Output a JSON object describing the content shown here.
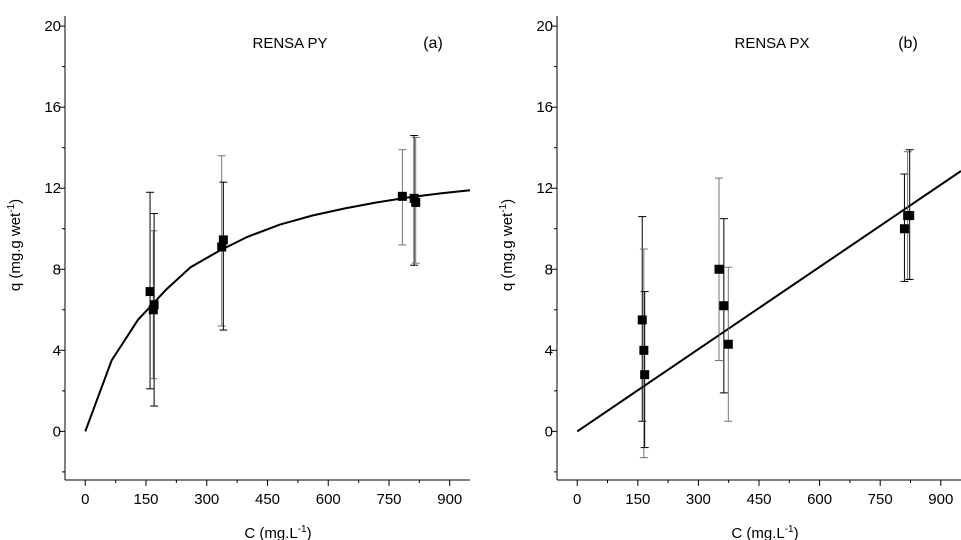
{
  "chart_data": [
    {
      "type": "scatter",
      "title": "RENSA PY",
      "panel_tag": "(a)",
      "xlabel": "C (mg.L",
      "xlabel_sup": "-1",
      "xlabel_end": ")",
      "ylabel": "q (mg.g wet",
      "ylabel_sup": "-1",
      "ylabel_end": ")",
      "xlim": [
        -50,
        950
      ],
      "ylim": [
        -2.4,
        20.5
      ],
      "xticks": [
        0,
        150,
        300,
        450,
        600,
        750,
        900
      ],
      "yticks": [
        0,
        4,
        8,
        12,
        16,
        20
      ],
      "points": [
        {
          "x": 160,
          "y": 6.9,
          "err_hi": 11.8,
          "err_lo": 2.1
        },
        {
          "x": 168,
          "y": 6.0,
          "err_hi": 9.9,
          "err_lo": 2.6
        },
        {
          "x": 170,
          "y": 6.25,
          "err_hi": 10.75,
          "err_lo": 1.25
        },
        {
          "x": 337,
          "y": 9.1,
          "err_hi": 13.6,
          "err_lo": 5.2
        },
        {
          "x": 341,
          "y": 9.45,
          "err_hi": 12.3,
          "err_lo": 5.0
        },
        {
          "x": 783,
          "y": 11.6,
          "err_hi": 13.9,
          "err_lo": 9.2
        },
        {
          "x": 812,
          "y": 11.5,
          "err_hi": 14.6,
          "err_lo": 8.2
        },
        {
          "x": 816,
          "y": 11.3,
          "err_hi": 14.5,
          "err_lo": 8.3
        }
      ],
      "fit": {
        "kind": "langmuir",
        "x": [
          0,
          65,
          130,
          200,
          260,
          330,
          400,
          480,
          560,
          640,
          720,
          800,
          880,
          950
        ],
        "y": [
          0,
          3.5,
          5.5,
          7.0,
          8.1,
          8.9,
          9.6,
          10.2,
          10.65,
          11.0,
          11.3,
          11.55,
          11.75,
          11.9
        ]
      }
    },
    {
      "type": "scatter",
      "title": "RENSA PX",
      "panel_tag": "(b)",
      "xlabel": "C (mg.L",
      "xlabel_sup": "-1",
      "xlabel_end": ")",
      "ylabel": "q (mg.g wet",
      "ylabel_sup": "-1",
      "ylabel_end": ")",
      "xlim": [
        -50,
        950
      ],
      "ylim": [
        -2.4,
        20.5
      ],
      "xticks": [
        0,
        150,
        300,
        450,
        600,
        750,
        900
      ],
      "yticks": [
        0,
        4,
        8,
        12,
        16,
        20
      ],
      "points": [
        {
          "x": 161,
          "y": 5.5,
          "err_hi": 10.6,
          "err_lo": 0.5
        },
        {
          "x": 165,
          "y": 4.0,
          "err_hi": 9.0,
          "err_lo": -1.3
        },
        {
          "x": 167,
          "y": 2.8,
          "err_hi": 6.9,
          "err_lo": -0.8
        },
        {
          "x": 351,
          "y": 8.0,
          "err_hi": 12.5,
          "err_lo": 3.5
        },
        {
          "x": 363,
          "y": 6.2,
          "err_hi": 10.5,
          "err_lo": 1.9
        },
        {
          "x": 374,
          "y": 4.3,
          "err_hi": 8.1,
          "err_lo": 0.5
        },
        {
          "x": 810,
          "y": 10.0,
          "err_hi": 12.7,
          "err_lo": 7.4
        },
        {
          "x": 818,
          "y": 10.65,
          "err_hi": 13.8,
          "err_lo": 7.5
        },
        {
          "x": 823,
          "y": 10.65,
          "err_hi": 13.9,
          "err_lo": 7.5
        }
      ],
      "fit": {
        "kind": "linear",
        "x": [
          0,
          950
        ],
        "y": [
          0,
          12.85
        ]
      }
    }
  ]
}
